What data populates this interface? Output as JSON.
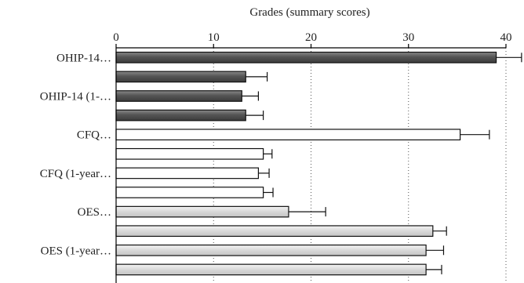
{
  "chart_data": {
    "type": "bar",
    "orientation": "horizontal",
    "xlabel": "Grades (summary scores)",
    "xlim": [
      0,
      40
    ],
    "xticks": [
      0,
      10,
      20,
      30,
      40
    ],
    "grid": "vertical dotted",
    "category_labels": [
      "OHIP-14…",
      "",
      "OHIP-14 (1-…",
      "",
      "CFQ…",
      "",
      "CFQ (1-year…",
      "",
      "OES…",
      "",
      "OES (1-year…",
      ""
    ],
    "values": [
      39.0,
      13.3,
      12.9,
      13.3,
      35.3,
      15.1,
      14.6,
      15.1,
      17.7,
      32.5,
      31.8,
      31.8
    ],
    "error_plus": [
      2.6,
      2.2,
      1.7,
      1.8,
      3.0,
      0.9,
      1.1,
      1.0,
      3.8,
      1.4,
      1.8,
      1.6
    ],
    "groups": [
      {
        "fill": "#5a5a5a",
        "bars": [
          0,
          1,
          2,
          3
        ]
      },
      {
        "fill": "#ffffff",
        "bars": [
          4,
          5,
          6,
          7
        ]
      },
      {
        "fill": "#dcdcdc",
        "bars": [
          8,
          9,
          10,
          11
        ]
      }
    ]
  }
}
